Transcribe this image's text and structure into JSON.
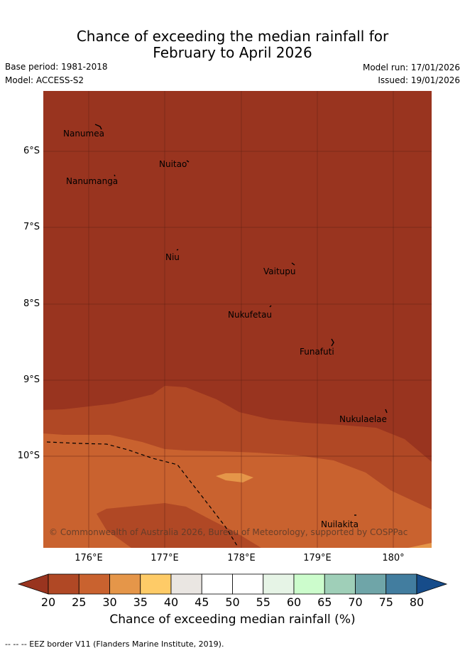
{
  "title": {
    "line1": "Chance of exceeding the median rainfall for",
    "line2": "February to April 2026"
  },
  "meta": {
    "base_period": "Base period: 1981-2018",
    "model": "Model: ACCESS-S2",
    "model_run": "Model run: 17/01/2026",
    "issued": "Issued: 19/01/2026"
  },
  "map": {
    "y_axis_labels": [
      "6°S",
      "7°S",
      "8°S",
      "9°S",
      "10°S"
    ],
    "x_axis_labels": [
      "176°E",
      "177°E",
      "178°E",
      "179°E",
      "180°"
    ],
    "places": [
      {
        "name": "Nanumea"
      },
      {
        "name": "Nuitao"
      },
      {
        "name": "Nanumanga"
      },
      {
        "name": "Niu"
      },
      {
        "name": "Vaitupu"
      },
      {
        "name": "Nukufetau"
      },
      {
        "name": "Funafuti"
      },
      {
        "name": "Nukulaelae"
      },
      {
        "name": "Nuilakita"
      }
    ],
    "copyright": "© Commonwealth of Australia 2026, Bureau of Meteorology, supported by COSPPac",
    "colors": {
      "lt20": "#99341f",
      "c20_25": "#b04825",
      "c25_30": "#c9622f",
      "c30_35": "#e59649",
      "c35_40": "#fecb67"
    }
  },
  "colorbar": {
    "ticks": [
      "20",
      "25",
      "30",
      "35",
      "40",
      "45",
      "50",
      "55",
      "60",
      "65",
      "70",
      "75",
      "80"
    ],
    "colors": [
      "#b04825",
      "#c9622f",
      "#e59649",
      "#fecb67",
      "#eae6e2",
      "#ffffff",
      "#ffffff",
      "#e6f4e6",
      "#ccfccc",
      "#9fcfb8",
      "#6fa5a8",
      "#427d9f"
    ],
    "under_color": "#99341f",
    "over_color": "#164c8a",
    "title": "Chance of exceeding median rainfall (%)"
  },
  "footer": {
    "legend": "--  --  -- EEZ border V11 (Flanders Marine Institute, 2019)."
  }
}
